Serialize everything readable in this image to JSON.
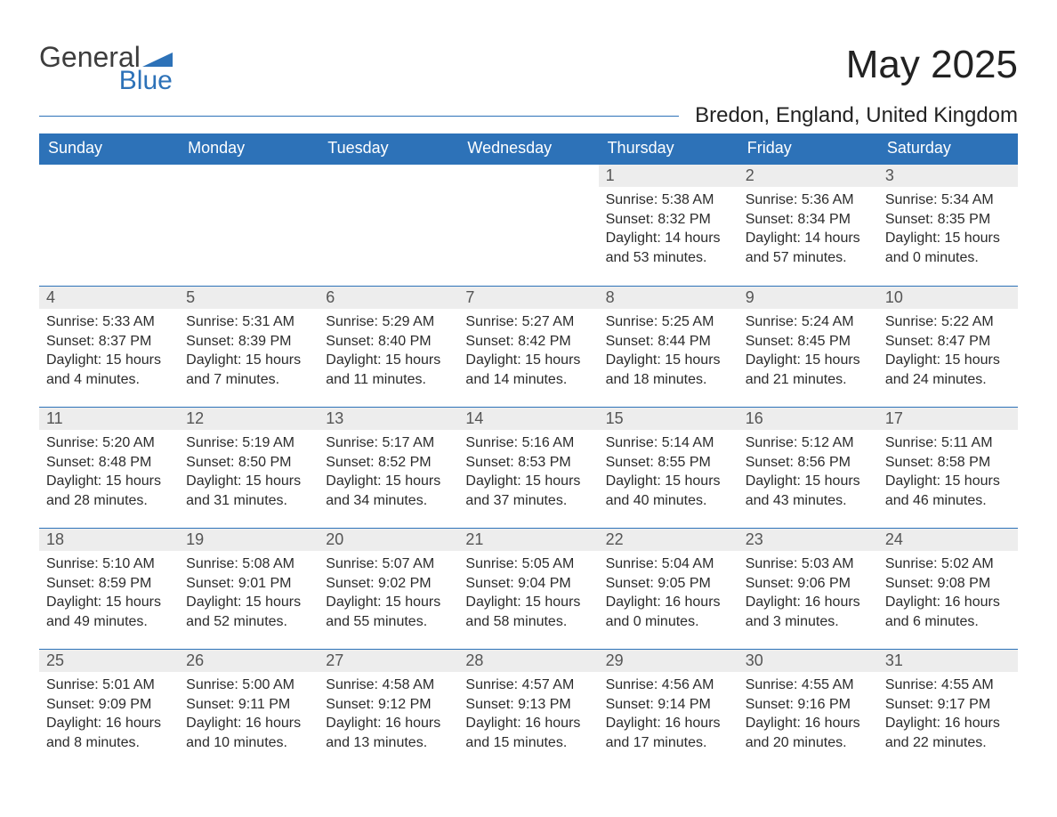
{
  "logo": {
    "general": "General",
    "blue": "Blue"
  },
  "title": "May 2025",
  "location": "Bredon, England, United Kingdom",
  "colors": {
    "accent": "#2d72b8",
    "header_bg": "#2d72b8",
    "daynum_bg": "#ededed",
    "text": "#2b2b2b",
    "background": "#ffffff"
  },
  "calendar": {
    "month": 5,
    "year": 2025,
    "start_day_index": 4,
    "days_of_week": [
      "Sunday",
      "Monday",
      "Tuesday",
      "Wednesday",
      "Thursday",
      "Friday",
      "Saturday"
    ],
    "days": [
      {
        "day": 1,
        "sunrise": "5:38 AM",
        "sunset": "8:32 PM",
        "daylight": "14 hours and 53 minutes."
      },
      {
        "day": 2,
        "sunrise": "5:36 AM",
        "sunset": "8:34 PM",
        "daylight": "14 hours and 57 minutes."
      },
      {
        "day": 3,
        "sunrise": "5:34 AM",
        "sunset": "8:35 PM",
        "daylight": "15 hours and 0 minutes."
      },
      {
        "day": 4,
        "sunrise": "5:33 AM",
        "sunset": "8:37 PM",
        "daylight": "15 hours and 4 minutes."
      },
      {
        "day": 5,
        "sunrise": "5:31 AM",
        "sunset": "8:39 PM",
        "daylight": "15 hours and 7 minutes."
      },
      {
        "day": 6,
        "sunrise": "5:29 AM",
        "sunset": "8:40 PM",
        "daylight": "15 hours and 11 minutes."
      },
      {
        "day": 7,
        "sunrise": "5:27 AM",
        "sunset": "8:42 PM",
        "daylight": "15 hours and 14 minutes."
      },
      {
        "day": 8,
        "sunrise": "5:25 AM",
        "sunset": "8:44 PM",
        "daylight": "15 hours and 18 minutes."
      },
      {
        "day": 9,
        "sunrise": "5:24 AM",
        "sunset": "8:45 PM",
        "daylight": "15 hours and 21 minutes."
      },
      {
        "day": 10,
        "sunrise": "5:22 AM",
        "sunset": "8:47 PM",
        "daylight": "15 hours and 24 minutes."
      },
      {
        "day": 11,
        "sunrise": "5:20 AM",
        "sunset": "8:48 PM",
        "daylight": "15 hours and 28 minutes."
      },
      {
        "day": 12,
        "sunrise": "5:19 AM",
        "sunset": "8:50 PM",
        "daylight": "15 hours and 31 minutes."
      },
      {
        "day": 13,
        "sunrise": "5:17 AM",
        "sunset": "8:52 PM",
        "daylight": "15 hours and 34 minutes."
      },
      {
        "day": 14,
        "sunrise": "5:16 AM",
        "sunset": "8:53 PM",
        "daylight": "15 hours and 37 minutes."
      },
      {
        "day": 15,
        "sunrise": "5:14 AM",
        "sunset": "8:55 PM",
        "daylight": "15 hours and 40 minutes."
      },
      {
        "day": 16,
        "sunrise": "5:12 AM",
        "sunset": "8:56 PM",
        "daylight": "15 hours and 43 minutes."
      },
      {
        "day": 17,
        "sunrise": "5:11 AM",
        "sunset": "8:58 PM",
        "daylight": "15 hours and 46 minutes."
      },
      {
        "day": 18,
        "sunrise": "5:10 AM",
        "sunset": "8:59 PM",
        "daylight": "15 hours and 49 minutes."
      },
      {
        "day": 19,
        "sunrise": "5:08 AM",
        "sunset": "9:01 PM",
        "daylight": "15 hours and 52 minutes."
      },
      {
        "day": 20,
        "sunrise": "5:07 AM",
        "sunset": "9:02 PM",
        "daylight": "15 hours and 55 minutes."
      },
      {
        "day": 21,
        "sunrise": "5:05 AM",
        "sunset": "9:04 PM",
        "daylight": "15 hours and 58 minutes."
      },
      {
        "day": 22,
        "sunrise": "5:04 AM",
        "sunset": "9:05 PM",
        "daylight": "16 hours and 0 minutes."
      },
      {
        "day": 23,
        "sunrise": "5:03 AM",
        "sunset": "9:06 PM",
        "daylight": "16 hours and 3 minutes."
      },
      {
        "day": 24,
        "sunrise": "5:02 AM",
        "sunset": "9:08 PM",
        "daylight": "16 hours and 6 minutes."
      },
      {
        "day": 25,
        "sunrise": "5:01 AM",
        "sunset": "9:09 PM",
        "daylight": "16 hours and 8 minutes."
      },
      {
        "day": 26,
        "sunrise": "5:00 AM",
        "sunset": "9:11 PM",
        "daylight": "16 hours and 10 minutes."
      },
      {
        "day": 27,
        "sunrise": "4:58 AM",
        "sunset": "9:12 PM",
        "daylight": "16 hours and 13 minutes."
      },
      {
        "day": 28,
        "sunrise": "4:57 AM",
        "sunset": "9:13 PM",
        "daylight": "16 hours and 15 minutes."
      },
      {
        "day": 29,
        "sunrise": "4:56 AM",
        "sunset": "9:14 PM",
        "daylight": "16 hours and 17 minutes."
      },
      {
        "day": 30,
        "sunrise": "4:55 AM",
        "sunset": "9:16 PM",
        "daylight": "16 hours and 20 minutes."
      },
      {
        "day": 31,
        "sunrise": "4:55 AM",
        "sunset": "9:17 PM",
        "daylight": "16 hours and 22 minutes."
      }
    ],
    "labels": {
      "sunrise": "Sunrise:",
      "sunset": "Sunset:",
      "daylight": "Daylight:"
    }
  }
}
